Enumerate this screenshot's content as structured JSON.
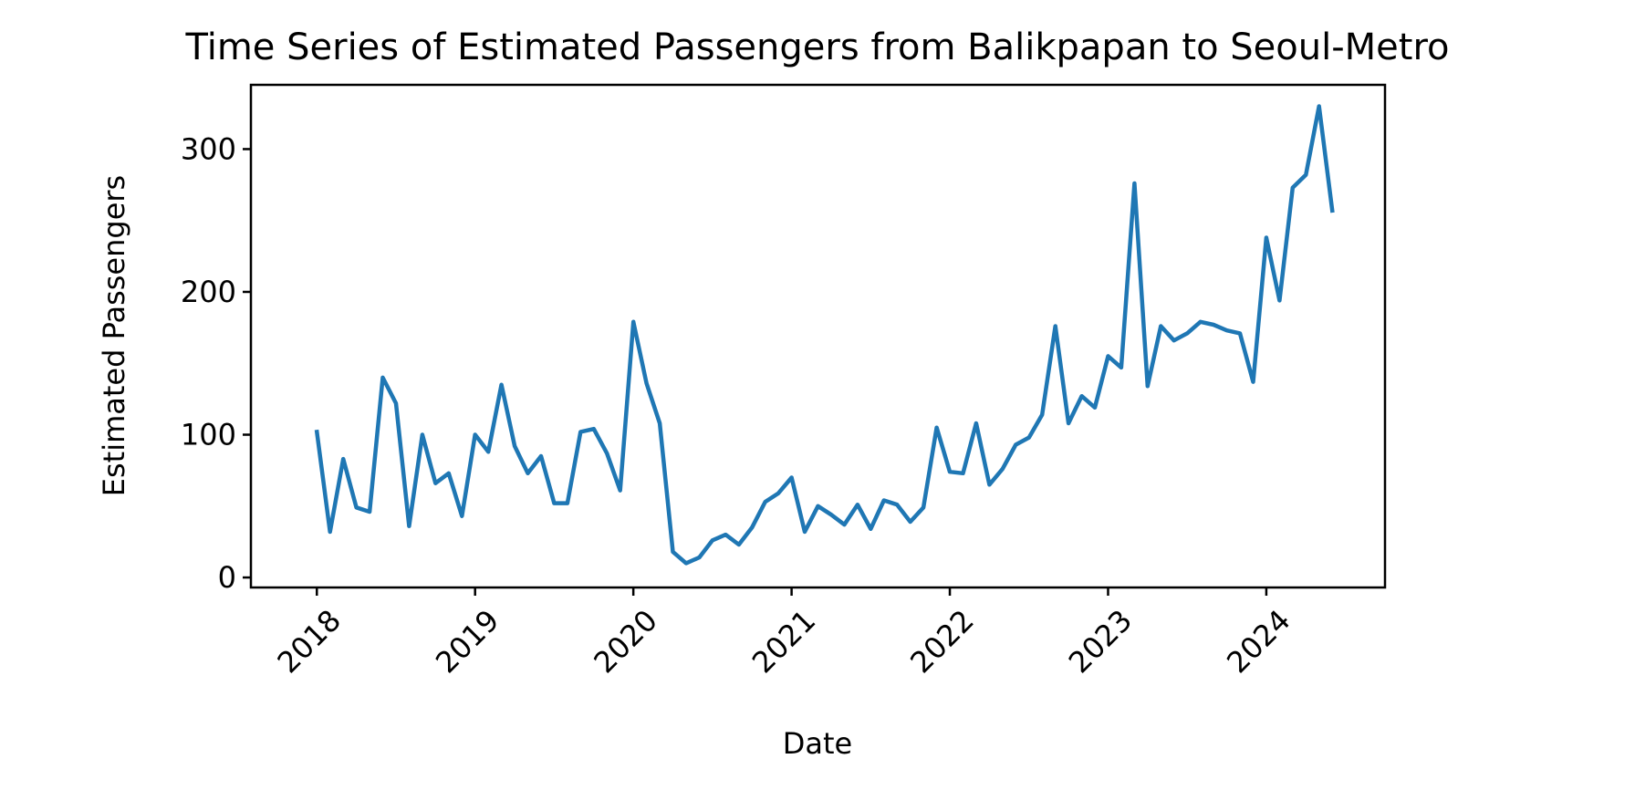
{
  "chart_data": {
    "type": "line",
    "title": "Time Series of Estimated Passengers from Balikpapan to Seoul-Metro",
    "xlabel": "Date",
    "ylabel": "Estimated Passengers",
    "x_axis_type": "date",
    "x_ticks": [
      "2018",
      "2019",
      "2020",
      "2021",
      "2022",
      "2023",
      "2024"
    ],
    "y_ticks": [
      0,
      100,
      200,
      300
    ],
    "ylim": [
      -7,
      345
    ],
    "xlim": [
      "2017-08",
      "2024-10"
    ],
    "grid": false,
    "color": "#1f77b4",
    "series": [
      {
        "x": [
          "2018-01",
          "2018-02",
          "2018-03",
          "2018-04",
          "2018-05",
          "2018-06",
          "2018-07",
          "2018-08",
          "2018-09",
          "2018-10",
          "2018-11",
          "2018-12",
          "2019-01",
          "2019-02",
          "2019-03",
          "2019-04",
          "2019-05",
          "2019-06",
          "2019-07",
          "2019-08",
          "2019-09",
          "2019-10",
          "2019-11",
          "2019-12",
          "2020-01",
          "2020-02",
          "2020-03",
          "2020-04",
          "2020-05",
          "2020-06",
          "2020-07",
          "2020-08",
          "2020-09",
          "2020-10",
          "2020-11",
          "2020-12",
          "2021-01",
          "2021-02",
          "2021-03",
          "2021-04",
          "2021-05",
          "2021-06",
          "2021-07",
          "2021-08",
          "2021-09",
          "2021-10",
          "2021-11",
          "2021-12",
          "2022-01",
          "2022-02",
          "2022-03",
          "2022-04",
          "2022-05",
          "2022-06",
          "2022-07",
          "2022-08",
          "2022-09",
          "2022-10",
          "2022-11",
          "2022-12",
          "2023-01",
          "2023-02",
          "2023-03",
          "2023-04",
          "2023-05",
          "2023-06",
          "2023-07",
          "2023-08",
          "2023-09",
          "2023-10",
          "2023-11",
          "2023-12",
          "2024-01",
          "2024-02",
          "2024-03",
          "2024-04",
          "2024-05",
          "2024-06"
        ],
        "y": [
          102,
          32,
          83,
          49,
          46,
          140,
          122,
          36,
          100,
          66,
          73,
          43,
          100,
          88,
          135,
          92,
          73,
          85,
          52,
          52,
          102,
          104,
          87,
          61,
          179,
          136,
          108,
          18,
          10,
          14,
          26,
          30,
          23,
          35,
          53,
          59,
          70,
          32,
          50,
          44,
          37,
          51,
          34,
          54,
          51,
          39,
          49,
          105,
          74,
          73,
          108,
          65,
          76,
          93,
          98,
          114,
          176,
          108,
          127,
          119,
          155,
          147,
          276,
          134,
          176,
          166,
          171,
          179,
          177,
          173,
          171,
          137,
          238,
          194,
          273,
          282,
          330,
          257
        ]
      }
    ]
  }
}
